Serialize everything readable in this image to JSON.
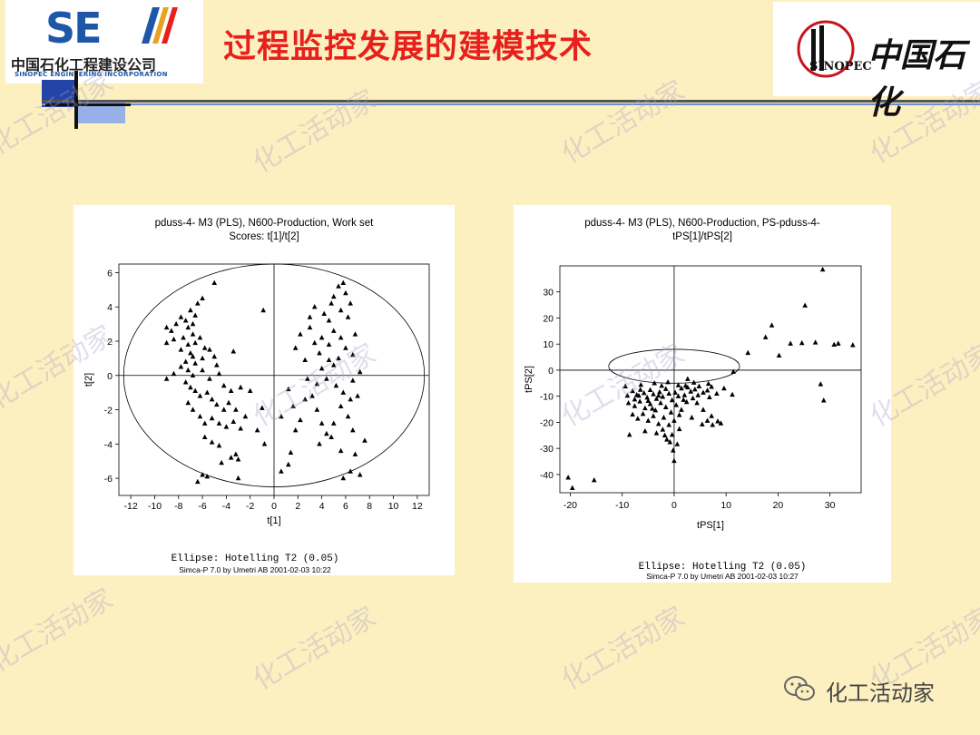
{
  "header": {
    "title": "过程监控发展的建模技术",
    "left_logo": {
      "mark": "SE",
      "company_cn": "中国石化工程建设公司",
      "company_en": "SINOPEC ENGINEERING INCORPORATION"
    },
    "right_logo": {
      "brand_cn": "中国石化",
      "brand_en": "SINOPEC"
    }
  },
  "watermark": "化工活动家",
  "footer": {
    "account": "化工活动家"
  },
  "chart_data": [
    {
      "type": "scatter",
      "title": "pduss-4- M3 (PLS), N600-Production, Work set",
      "subtitle": "Scores: t[1]/t[2]",
      "xlabel": "t[1]",
      "ylabel": "t[2]",
      "xlim": [
        -13,
        13
      ],
      "ylim": [
        -7,
        6.5
      ],
      "xticks": [
        -12,
        -10,
        -8,
        -6,
        -4,
        -2,
        0,
        2,
        4,
        6,
        8,
        10,
        12
      ],
      "yticks": [
        -6,
        -4,
        -2,
        0,
        2,
        4,
        6
      ],
      "ellipse": {
        "cx": 0,
        "cy": 0,
        "rx": 12.6,
        "ry": 6.5
      },
      "ellipse_label": "Ellipse: Hotelling T2 (0.05)",
      "credit": "Simca-P 7.0 by Umetri AB 2001-02-03 10:22",
      "marker": "triangle",
      "points": [
        [
          -9.0,
          2.8
        ],
        [
          -8.6,
          2.6
        ],
        [
          -8.2,
          3.0
        ],
        [
          -7.8,
          3.4
        ],
        [
          -7.4,
          3.2
        ],
        [
          -7.2,
          2.8
        ],
        [
          -6.8,
          3.0
        ],
        [
          -6.6,
          3.5
        ],
        [
          -7.0,
          3.8
        ],
        [
          -6.4,
          4.2
        ],
        [
          -6.0,
          4.5
        ],
        [
          -5.0,
          5.4
        ],
        [
          -6.8,
          2.4
        ],
        [
          -7.6,
          2.2
        ],
        [
          -8.4,
          2.1
        ],
        [
          -9.0,
          1.9
        ],
        [
          -7.2,
          1.8
        ],
        [
          -6.6,
          1.9
        ],
        [
          -6.2,
          2.2
        ],
        [
          -5.8,
          1.6
        ],
        [
          -7.8,
          1.5
        ],
        [
          -7.0,
          1.3
        ],
        [
          -6.8,
          1.1
        ],
        [
          -7.4,
          0.8
        ],
        [
          -6.6,
          0.7
        ],
        [
          -6.0,
          1.0
        ],
        [
          -5.4,
          1.5
        ],
        [
          -5.0,
          1.1
        ],
        [
          -4.8,
          0.6
        ],
        [
          -3.4,
          1.4
        ],
        [
          -7.8,
          0.5
        ],
        [
          -7.2,
          0.3
        ],
        [
          -6.8,
          0.0
        ],
        [
          -6.0,
          0.3
        ],
        [
          -5.4,
          -0.2
        ],
        [
          -4.6,
          0.1
        ],
        [
          -4.2,
          -0.6
        ],
        [
          -3.6,
          -0.9
        ],
        [
          -2.8,
          -0.7
        ],
        [
          -2.0,
          -0.9
        ],
        [
          -7.4,
          -0.4
        ],
        [
          -7.0,
          -0.7
        ],
        [
          -6.6,
          -0.9
        ],
        [
          -6.2,
          -1.2
        ],
        [
          -5.6,
          -1.0
        ],
        [
          -5.2,
          -1.4
        ],
        [
          -4.8,
          -1.7
        ],
        [
          -4.2,
          -2.0
        ],
        [
          -3.8,
          -1.6
        ],
        [
          -3.2,
          -2.0
        ],
        [
          -7.2,
          -1.6
        ],
        [
          -6.8,
          -2.0
        ],
        [
          -6.2,
          -2.4
        ],
        [
          -5.8,
          -2.8
        ],
        [
          -5.2,
          -2.5
        ],
        [
          -4.6,
          -2.8
        ],
        [
          -4.0,
          -3.0
        ],
        [
          -3.4,
          -2.7
        ],
        [
          -2.8,
          -3.1
        ],
        [
          -2.4,
          -2.4
        ],
        [
          -5.8,
          -3.6
        ],
        [
          -5.2,
          -3.9
        ],
        [
          -4.6,
          -4.1
        ],
        [
          -3.6,
          -4.8
        ],
        [
          -3.2,
          -4.6
        ],
        [
          -3.0,
          -4.9
        ],
        [
          -4.4,
          -5.1
        ],
        [
          -5.6,
          -5.9
        ],
        [
          -6.0,
          -5.8
        ],
        [
          -3.0,
          -6.0
        ],
        [
          -6.4,
          -6.2
        ],
        [
          -1.0,
          -1.9
        ],
        [
          -1.4,
          -3.2
        ],
        [
          -0.8,
          -4.0
        ],
        [
          -9.0,
          -0.2
        ],
        [
          -8.4,
          0.1
        ],
        [
          -0.9,
          3.8
        ],
        [
          1.6,
          -1.8
        ],
        [
          1.2,
          -0.8
        ],
        [
          0.6,
          -2.4
        ],
        [
          1.8,
          -3.2
        ],
        [
          1.4,
          -4.5
        ],
        [
          1.2,
          -5.2
        ],
        [
          0.6,
          -5.6
        ],
        [
          2.2,
          -2.6
        ],
        [
          2.6,
          -1.4
        ],
        [
          2.8,
          -0.2
        ],
        [
          2.6,
          0.9
        ],
        [
          1.8,
          1.6
        ],
        [
          2.2,
          2.4
        ],
        [
          3.0,
          2.8
        ],
        [
          3.4,
          1.9
        ],
        [
          3.8,
          1.3
        ],
        [
          4.0,
          0.4
        ],
        [
          3.6,
          -0.5
        ],
        [
          3.2,
          -1.2
        ],
        [
          3.6,
          -2.0
        ],
        [
          4.0,
          -2.8
        ],
        [
          4.4,
          -3.4
        ],
        [
          3.8,
          -4.0
        ],
        [
          4.6,
          3.2
        ],
        [
          4.2,
          3.6
        ],
        [
          4.8,
          4.2
        ],
        [
          5.0,
          4.6
        ],
        [
          5.4,
          5.2
        ],
        [
          5.8,
          5.4
        ],
        [
          6.0,
          4.8
        ],
        [
          6.4,
          4.2
        ],
        [
          5.6,
          3.8
        ],
        [
          6.2,
          3.4
        ],
        [
          5.0,
          2.6
        ],
        [
          5.6,
          2.2
        ],
        [
          6.0,
          1.6
        ],
        [
          6.6,
          1.2
        ],
        [
          5.4,
          1.0
        ],
        [
          5.0,
          0.6
        ],
        [
          4.6,
          1.8
        ],
        [
          4.4,
          -0.2
        ],
        [
          5.2,
          -0.6
        ],
        [
          5.8,
          -1.0
        ],
        [
          6.4,
          -1.4
        ],
        [
          7.0,
          -1.2
        ],
        [
          6.6,
          -0.3
        ],
        [
          7.2,
          0.2
        ],
        [
          5.6,
          -1.8
        ],
        [
          6.2,
          -2.4
        ],
        [
          5.0,
          -2.8
        ],
        [
          4.8,
          -3.6
        ],
        [
          5.6,
          -4.4
        ],
        [
          6.6,
          -3.2
        ],
        [
          6.8,
          -4.6
        ],
        [
          7.2,
          -5.8
        ],
        [
          6.4,
          -5.6
        ],
        [
          5.8,
          -6.0
        ],
        [
          7.6,
          -3.8
        ],
        [
          3.0,
          3.4
        ],
        [
          3.4,
          4.0
        ],
        [
          4.0,
          2.2
        ],
        [
          4.6,
          0.9
        ],
        [
          6.8,
          2.4
        ]
      ]
    },
    {
      "type": "scatter",
      "title": "pduss-4- M3 (PLS), N600-Production, PS-pduss-4-",
      "subtitle": "tPS[1]/tPS[2]",
      "xlabel": "tPS[1]",
      "ylabel": "tPS[2]",
      "xlim": [
        -22,
        36
      ],
      "ylim": [
        -47,
        40
      ],
      "xticks": [
        -20,
        -10,
        0,
        10,
        20,
        30
      ],
      "yticks": [
        -40,
        -30,
        -20,
        -10,
        0,
        10,
        20,
        30
      ],
      "ellipse": {
        "cx": 0,
        "cy": 1.5,
        "rx": 12.6,
        "ry": 6.5
      },
      "ellipse_label": "Ellipse: Hotelling T2 (0.05)",
      "credit": "Simca-P 7.0 by Umetri AB 2001-02-03 10:27",
      "marker": "triangle",
      "points": [
        [
          -8.0,
          -8.0
        ],
        [
          -7.2,
          -9.5
        ],
        [
          -6.5,
          -7.5
        ],
        [
          -5.8,
          -8.8
        ],
        [
          -5.2,
          -10.5
        ],
        [
          -4.6,
          -7.6
        ],
        [
          -4.0,
          -9.2
        ],
        [
          -3.4,
          -11.0
        ],
        [
          -2.8,
          -8.4
        ],
        [
          -2.2,
          -10.2
        ],
        [
          -1.6,
          -7.2
        ],
        [
          -1.0,
          -9.0
        ],
        [
          -0.4,
          -11.5
        ],
        [
          0.2,
          -8.6
        ],
        [
          0.8,
          -10.0
        ],
        [
          1.4,
          -7.0
        ],
        [
          2.0,
          -9.6
        ],
        [
          2.6,
          -6.6
        ],
        [
          3.2,
          -8.2
        ],
        [
          4.0,
          -7.4
        ],
        [
          4.8,
          -6.2
        ],
        [
          5.6,
          -8.6
        ],
        [
          6.4,
          -7.8
        ],
        [
          7.2,
          -6.4
        ],
        [
          8.2,
          -9.0
        ],
        [
          9.6,
          -7.0
        ],
        [
          11.2,
          -9.4
        ],
        [
          -8.8,
          -12.6
        ],
        [
          -7.6,
          -13.8
        ],
        [
          -6.6,
          -12.0
        ],
        [
          -5.6,
          -14.6
        ],
        [
          -4.6,
          -13.0
        ],
        [
          -3.6,
          -15.4
        ],
        [
          -2.6,
          -12.6
        ],
        [
          -1.6,
          -14.2
        ],
        [
          -0.6,
          -16.2
        ],
        [
          0.4,
          -13.4
        ],
        [
          1.4,
          -15.2
        ],
        [
          2.4,
          -12.2
        ],
        [
          -8.0,
          -17.0
        ],
        [
          -7.0,
          -18.6
        ],
        [
          -6.0,
          -16.8
        ],
        [
          -5.0,
          -19.4
        ],
        [
          -4.0,
          -17.6
        ],
        [
          -3.0,
          -20.6
        ],
        [
          -2.0,
          -18.2
        ],
        [
          -1.0,
          -21.0
        ],
        [
          0.0,
          -19.4
        ],
        [
          1.0,
          -22.6
        ],
        [
          -0.4,
          -24.8
        ],
        [
          -1.4,
          -26.6
        ],
        [
          0.6,
          -28.4
        ],
        [
          -0.2,
          -30.8
        ],
        [
          0.0,
          -34.8
        ],
        [
          -8.6,
          -24.8
        ],
        [
          -5.6,
          -23.4
        ],
        [
          -3.4,
          -24.2
        ],
        [
          -1.8,
          -25.0
        ],
        [
          4.4,
          -12.6
        ],
        [
          5.6,
          -15.2
        ],
        [
          6.4,
          -19.4
        ],
        [
          7.4,
          -21.0
        ],
        [
          8.4,
          -19.6
        ],
        [
          5.4,
          -20.8
        ],
        [
          3.4,
          -18.2
        ],
        [
          9.0,
          -20.4
        ],
        [
          7.2,
          -17.6
        ],
        [
          -6.4,
          -5.6
        ],
        [
          -3.8,
          -5.0
        ],
        [
          -1.2,
          -4.6
        ],
        [
          2.6,
          -3.4
        ],
        [
          3.8,
          -4.8
        ],
        [
          6.6,
          -5.2
        ],
        [
          -9.0,
          -9.8
        ],
        [
          -9.4,
          -6.2
        ],
        [
          -2.4,
          -6.0
        ],
        [
          0.8,
          -5.8
        ],
        [
          -4.2,
          -14.8
        ],
        [
          -6.8,
          -9.8
        ],
        [
          -5.0,
          -11.8
        ],
        [
          -3.0,
          -9.8
        ],
        [
          -7.6,
          -11.2
        ],
        [
          1.8,
          -11.4
        ],
        [
          3.6,
          -10.8
        ],
        [
          4.6,
          -9.6
        ],
        [
          6.8,
          -10.4
        ],
        [
          1.0,
          -17.2
        ],
        [
          -2.2,
          -22.8
        ],
        [
          -0.8,
          -27.6
        ],
        [
          2.2,
          -6.0
        ],
        [
          11.4,
          -0.6
        ],
        [
          14.2,
          6.6
        ],
        [
          17.6,
          12.6
        ],
        [
          18.8,
          17.2
        ],
        [
          20.2,
          5.6
        ],
        [
          22.4,
          10.2
        ],
        [
          24.6,
          10.4
        ],
        [
          25.2,
          24.8
        ],
        [
          27.2,
          10.6
        ],
        [
          28.2,
          -5.4
        ],
        [
          28.6,
          38.6
        ],
        [
          28.8,
          -11.6
        ],
        [
          30.8,
          9.8
        ],
        [
          31.6,
          10.2
        ],
        [
          34.4,
          9.6
        ],
        [
          -20.4,
          -41.2
        ],
        [
          -19.6,
          -45.2
        ],
        [
          -15.4,
          -42.2
        ]
      ]
    }
  ]
}
